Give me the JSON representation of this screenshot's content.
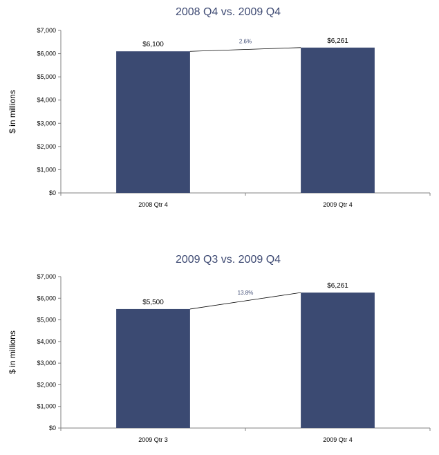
{
  "chart_data": [
    {
      "type": "bar",
      "title": "2008 Q4 vs. 2009 Q4",
      "ylabel": "$ in millions",
      "xlabel": "",
      "categories": [
        "2008 Qtr 4",
        "2009 Qtr 4"
      ],
      "values": [
        6100,
        6261
      ],
      "value_labels": [
        "$6,100",
        "$6,261"
      ],
      "change_label": "2.6%",
      "ylim": [
        0,
        7000
      ],
      "yticks": [
        0,
        1000,
        2000,
        3000,
        4000,
        5000,
        6000,
        7000
      ],
      "ytick_labels": [
        "$0",
        "$1,000",
        "$2,000",
        "$3,000",
        "$4,000",
        "$5,000",
        "$6,000",
        "$7,000"
      ],
      "bar_color": "#3b4a72",
      "grid": false,
      "legend": "none"
    },
    {
      "type": "bar",
      "title": "2009 Q3 vs. 2009 Q4",
      "ylabel": "$ in millions",
      "xlabel": "",
      "categories": [
        "2009 Qtr 3",
        "2009 Qtr 4"
      ],
      "values": [
        5500,
        6261
      ],
      "value_labels": [
        "$5,500",
        "$6,261"
      ],
      "change_label": "13.8%",
      "ylim": [
        0,
        7000
      ],
      "yticks": [
        0,
        1000,
        2000,
        3000,
        4000,
        5000,
        6000,
        7000
      ],
      "ytick_labels": [
        "$0",
        "$1,000",
        "$2,000",
        "$3,000",
        "$4,000",
        "$5,000",
        "$6,000",
        "$7,000"
      ],
      "bar_color": "#3b4a72",
      "grid": false,
      "legend": "none"
    }
  ]
}
